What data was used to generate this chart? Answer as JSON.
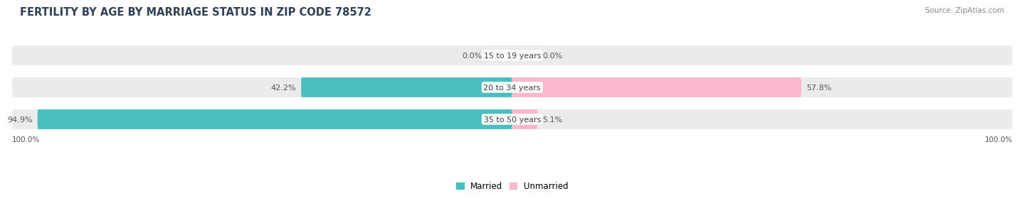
{
  "title": "FERTILITY BY AGE BY MARRIAGE STATUS IN ZIP CODE 78572",
  "source": "Source: ZipAtlas.com",
  "categories": [
    "15 to 19 years",
    "20 to 34 years",
    "35 to 50 years"
  ],
  "married_pct": [
    0.0,
    42.2,
    94.9
  ],
  "unmarried_pct": [
    0.0,
    57.8,
    5.1
  ],
  "married_color": "#4BBFBF",
  "unmarried_color": "#F06EA0",
  "unmarried_light_color": "#F9B8CE",
  "bar_bg_color": "#EBEBEB",
  "bar_height": 0.62,
  "title_fontsize": 10.5,
  "label_fontsize": 8.0,
  "category_fontsize": 8.0,
  "legend_fontsize": 8.5,
  "source_fontsize": 7.5,
  "axis_label_fontsize": 7.5,
  "figure_bg_color": "#FFFFFF"
}
